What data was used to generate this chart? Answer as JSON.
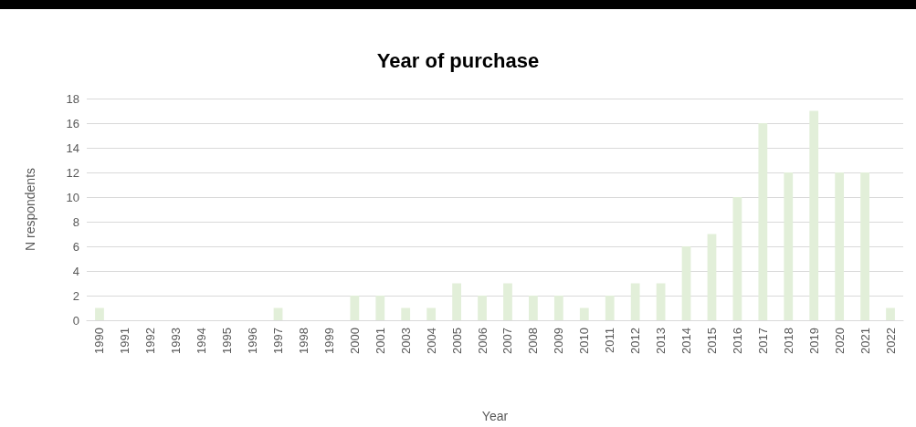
{
  "chart_data": {
    "type": "bar",
    "title": "Year of purchase",
    "xlabel": "Year",
    "ylabel": "N respondents",
    "categories": [
      "1990",
      "1991",
      "1992",
      "1993",
      "1994",
      "1995",
      "1996",
      "1997",
      "1998",
      "1999",
      "2000",
      "2001",
      "2003",
      "2004",
      "2005",
      "2006",
      "2007",
      "2008",
      "2009",
      "2010",
      "2011",
      "2012",
      "2013",
      "2014",
      "2015",
      "2016",
      "2017",
      "2018",
      "2019",
      "2020",
      "2021",
      "2022"
    ],
    "values": [
      1,
      0,
      0,
      0,
      0,
      0,
      0,
      1,
      0,
      0,
      2,
      2,
      1,
      1,
      3,
      2,
      3,
      2,
      2,
      1,
      2,
      3,
      3,
      6,
      7,
      10,
      16,
      12,
      17,
      12,
      12,
      1
    ],
    "color": "#e2efd9",
    "ylim": [
      0,
      18
    ],
    "yticks": [
      0,
      2,
      4,
      6,
      8,
      10,
      12,
      14,
      16,
      18
    ],
    "grid": "y"
  }
}
